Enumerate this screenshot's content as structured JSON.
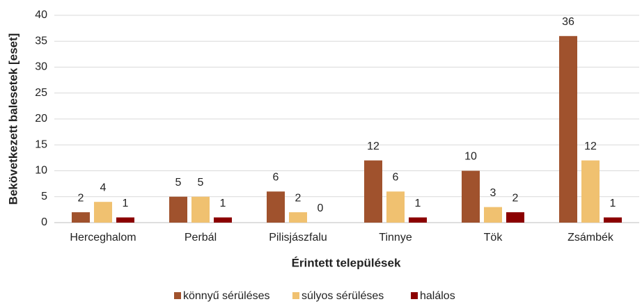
{
  "chart_data": {
    "type": "bar",
    "ylabel": "Bekövetkezett balesetek [eset]",
    "xlabel": "Érintett települések",
    "categories": [
      "Herceghalom",
      "Perbál",
      "Pilisjászfalu",
      "Tinnye",
      "Tök",
      "Zsámbék"
    ],
    "series": [
      {
        "name": "könnyű sérüléses",
        "color": "#a0522d",
        "values": [
          2,
          5,
          6,
          12,
          10,
          36
        ]
      },
      {
        "name": "súlyos sérüléses",
        "color": "#f0c170",
        "values": [
          4,
          5,
          2,
          6,
          3,
          12
        ]
      },
      {
        "name": "halálos",
        "color": "#8b0000",
        "values": [
          1,
          1,
          0,
          1,
          2,
          1
        ]
      }
    ],
    "ylim": [
      0,
      40
    ],
    "yticks": [
      0,
      5,
      10,
      15,
      20,
      25,
      30,
      35,
      40
    ],
    "grid": true,
    "legend": "bottom"
  }
}
